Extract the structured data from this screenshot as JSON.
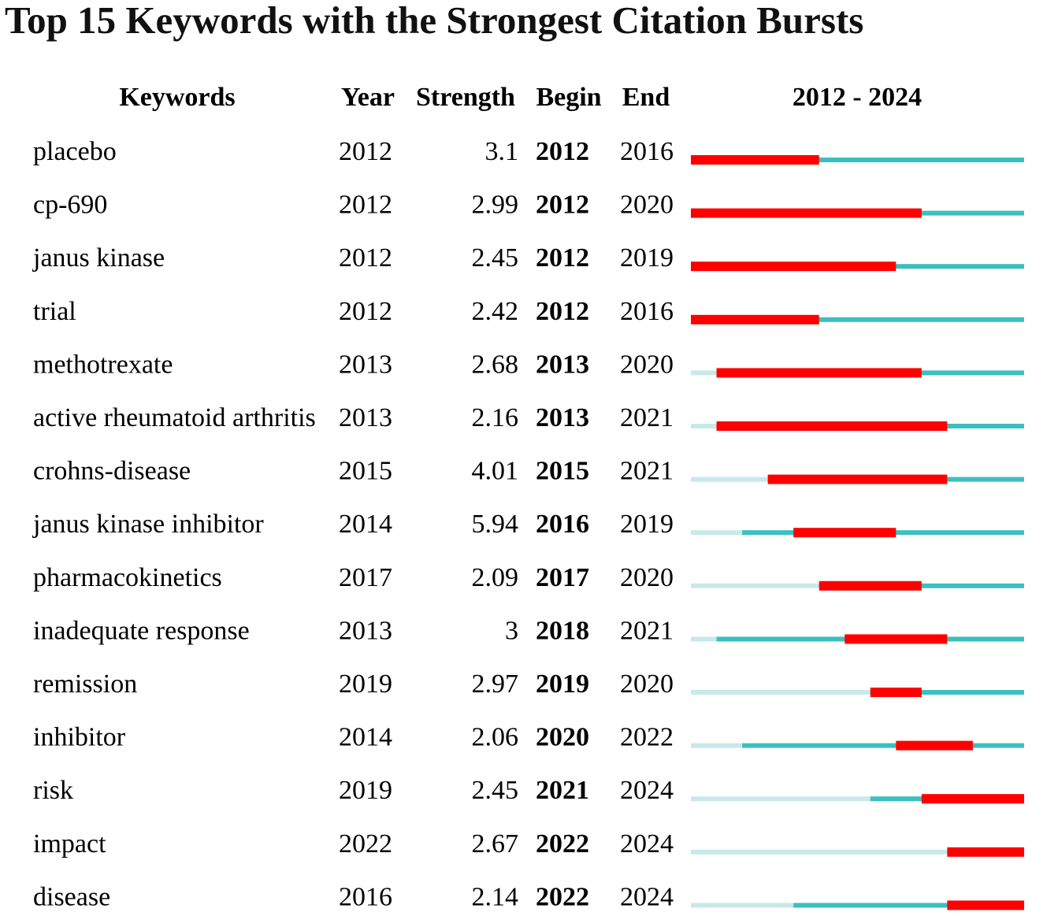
{
  "chart_data": {
    "type": "table",
    "title": "Top 15 Keywords with the Strongest Citation Bursts",
    "headers": {
      "keywords": "Keywords",
      "year": "Year",
      "strength": "Strength",
      "begin": "Begin",
      "end": "End",
      "range": "2012 - 2024"
    },
    "range_start": 2012,
    "range_end": 2024,
    "colors": {
      "burst": "#ff0000",
      "active": "#3cbfc0",
      "inactive": "#c8e9ea"
    },
    "rows": [
      {
        "keyword": "placebo",
        "year": "2012",
        "strength": "3.1",
        "begin": "2012",
        "end": "2016"
      },
      {
        "keyword": "cp-690",
        "year": "2012",
        "strength": "2.99",
        "begin": "2012",
        "end": "2020"
      },
      {
        "keyword": "janus kinase",
        "year": "2012",
        "strength": "2.45",
        "begin": "2012",
        "end": "2019"
      },
      {
        "keyword": "trial",
        "year": "2012",
        "strength": "2.42",
        "begin": "2012",
        "end": "2016"
      },
      {
        "keyword": "methotrexate",
        "year": "2013",
        "strength": "2.68",
        "begin": "2013",
        "end": "2020"
      },
      {
        "keyword": "active rheumatoid arthritis",
        "year": "2013",
        "strength": "2.16",
        "begin": "2013",
        "end": "2021"
      },
      {
        "keyword": "crohns-disease",
        "year": "2015",
        "strength": "4.01",
        "begin": "2015",
        "end": "2021"
      },
      {
        "keyword": "janus kinase inhibitor",
        "year": "2014",
        "strength": "5.94",
        "begin": "2016",
        "end": "2019"
      },
      {
        "keyword": "pharmacokinetics",
        "year": "2017",
        "strength": "2.09",
        "begin": "2017",
        "end": "2020"
      },
      {
        "keyword": "inadequate response",
        "year": "2013",
        "strength": "3",
        "begin": "2018",
        "end": "2021"
      },
      {
        "keyword": "remission",
        "year": "2019",
        "strength": "2.97",
        "begin": "2019",
        "end": "2020"
      },
      {
        "keyword": "inhibitor",
        "year": "2014",
        "strength": "2.06",
        "begin": "2020",
        "end": "2022"
      },
      {
        "keyword": "risk",
        "year": "2019",
        "strength": "2.45",
        "begin": "2021",
        "end": "2024"
      },
      {
        "keyword": "impact",
        "year": "2022",
        "strength": "2.67",
        "begin": "2022",
        "end": "2024"
      },
      {
        "keyword": "disease",
        "year": "2016",
        "strength": "2.14",
        "begin": "2022",
        "end": "2024"
      }
    ]
  }
}
